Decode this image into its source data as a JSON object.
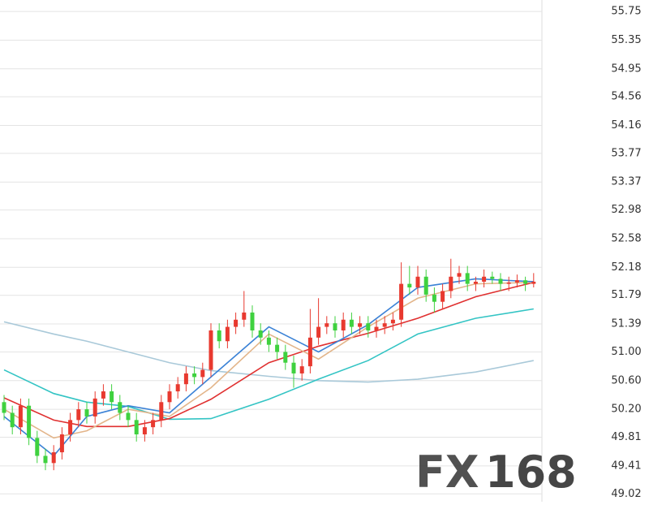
{
  "chart_data": {
    "type": "candlestick",
    "up_color": "#e8392f",
    "down_color": "#3fd13f",
    "grid": true,
    "ylim": [
      48.91,
      55.91
    ],
    "yticks": [
      55.75,
      55.35,
      54.95,
      54.56,
      54.16,
      53.77,
      53.37,
      52.98,
      52.58,
      52.18,
      51.79,
      51.39,
      {
        "value": 51,
        "label": "51.00"
      },
      {
        "value": 50.6,
        "label": "50.60"
      },
      {
        "value": 50.2,
        "label": "50.20"
      },
      49.81,
      49.41,
      49.02
    ],
    "open": [
      50.3,
      50.15,
      49.95,
      50.25,
      49.8,
      49.55,
      49.45,
      49.6,
      49.85,
      50.05,
      50.2,
      50.1,
      50.35,
      50.45,
      50.3,
      50.15,
      50.05,
      49.85,
      49.95,
      50.05,
      50.3,
      50.45,
      50.55,
      50.7,
      50.65,
      50.75,
      51.3,
      51.15,
      51.35,
      51.45,
      51.55,
      51.3,
      51.2,
      51.1,
      51.0,
      50.85,
      50.7,
      50.8,
      51.2,
      51.35,
      51.4,
      51.3,
      51.45,
      51.35,
      51.4,
      51.3,
      51.35,
      51.4,
      51.45,
      51.95,
      51.9,
      52.05,
      51.8,
      51.7,
      51.85,
      52.05,
      52.1,
      51.95,
      51.98,
      52.05,
      52.02,
      51.95,
      51.97,
      52.0,
      51.95
    ],
    "close": [
      50.15,
      49.95,
      50.25,
      49.8,
      49.55,
      49.45,
      49.6,
      49.85,
      50.05,
      50.2,
      50.1,
      50.35,
      50.45,
      50.3,
      50.15,
      50.05,
      49.85,
      49.95,
      50.05,
      50.3,
      50.45,
      50.55,
      50.7,
      50.65,
      50.75,
      51.3,
      51.15,
      51.35,
      51.45,
      51.55,
      51.3,
      51.2,
      51.1,
      51.0,
      50.85,
      50.7,
      50.8,
      51.2,
      51.35,
      51.4,
      51.3,
      51.45,
      51.35,
      51.4,
      51.3,
      51.35,
      51.4,
      51.45,
      51.95,
      51.9,
      52.05,
      51.8,
      51.7,
      51.85,
      52.05,
      52.1,
      51.95,
      51.98,
      52.05,
      52.02,
      51.95,
      51.97,
      52.0,
      51.95,
      51.98
    ],
    "high": [
      50.4,
      50.25,
      50.35,
      50.35,
      49.9,
      49.65,
      49.7,
      49.95,
      50.15,
      50.3,
      50.3,
      50.45,
      50.55,
      50.55,
      50.4,
      50.25,
      50.15,
      50.05,
      50.15,
      50.4,
      50.55,
      50.65,
      50.8,
      50.8,
      50.85,
      51.4,
      51.4,
      51.45,
      51.55,
      51.85,
      51.65,
      51.4,
      51.3,
      51.2,
      51.1,
      50.95,
      50.9,
      51.6,
      51.75,
      51.5,
      51.5,
      51.55,
      51.55,
      51.5,
      51.5,
      51.45,
      51.5,
      51.55,
      52.25,
      52.2,
      52.2,
      52.15,
      51.9,
      51.95,
      52.3,
      52.2,
      52.2,
      52.05,
      52.15,
      52.12,
      52.1,
      52.05,
      52.08,
      52.05,
      52.1
    ],
    "low": [
      50.05,
      49.85,
      49.85,
      49.7,
      49.45,
      49.35,
      49.35,
      49.5,
      49.75,
      49.95,
      50.0,
      50.0,
      50.25,
      50.2,
      50.05,
      49.95,
      49.75,
      49.75,
      49.85,
      49.95,
      50.2,
      50.35,
      50.45,
      50.55,
      50.55,
      50.65,
      51.05,
      51.05,
      51.25,
      51.35,
      51.2,
      51.1,
      51.0,
      50.9,
      50.75,
      50.5,
      50.6,
      50.7,
      51.1,
      51.25,
      51.2,
      51.2,
      51.25,
      51.25,
      51.2,
      51.2,
      51.25,
      51.3,
      51.35,
      51.8,
      51.8,
      51.7,
      51.55,
      51.6,
      51.75,
      51.95,
      51.85,
      51.85,
      51.9,
      51.95,
      51.85,
      51.85,
      51.9,
      51.85,
      51.9
    ],
    "series": [
      {
        "color": "#a9c9d9",
        "x": [
          0,
          6,
          10,
          15,
          20,
          25,
          32,
          38,
          44,
          50,
          57,
          64
        ],
        "values": [
          51.42,
          51.25,
          51.15,
          51.0,
          50.85,
          50.74,
          50.66,
          50.6,
          50.58,
          50.62,
          50.72,
          50.88
        ]
      },
      {
        "color": "#33c4c4",
        "x": [
          0,
          6,
          10,
          15,
          20,
          25,
          32,
          38,
          44,
          50,
          57,
          64
        ],
        "values": [
          50.75,
          50.42,
          50.3,
          50.24,
          50.06,
          50.07,
          50.34,
          50.62,
          50.88,
          51.25,
          51.47,
          51.6
        ]
      },
      {
        "color": "#e03030",
        "x": [
          0,
          6,
          10,
          15,
          20,
          25,
          32,
          38,
          44,
          50,
          57,
          64
        ],
        "values": [
          50.36,
          50.05,
          49.96,
          49.96,
          50.07,
          50.34,
          50.85,
          51.08,
          51.26,
          51.47,
          51.77,
          51.97
        ]
      },
      {
        "color": "#e3b58a",
        "x": [
          0,
          6,
          10,
          15,
          20,
          25,
          32,
          38,
          44,
          50,
          57,
          64
        ],
        "values": [
          50.2,
          49.8,
          49.9,
          50.2,
          50.1,
          50.5,
          51.25,
          50.9,
          51.35,
          51.75,
          51.95,
          51.97
        ]
      },
      {
        "color": "#3b82d6",
        "x": [
          0,
          6,
          10,
          15,
          20,
          25,
          32,
          38,
          44,
          50,
          57,
          64
        ],
        "values": [
          50.1,
          49.55,
          50.1,
          50.25,
          50.15,
          50.65,
          51.35,
          51.0,
          51.38,
          51.9,
          52.02,
          51.98
        ]
      }
    ],
    "watermark": [
      "FX",
      "168"
    ]
  }
}
